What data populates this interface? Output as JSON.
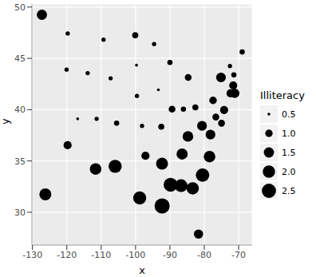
{
  "chart_data": {
    "type": "scatter",
    "xlabel": "x",
    "ylabel": "y",
    "color": "#000000",
    "grid": true,
    "x": [
      -86.7509,
      -127.25,
      -111.625,
      -92.2992,
      -119.773,
      -105.513,
      -72.3573,
      -74.9841,
      -81.685,
      -83.3736,
      -126.25,
      -113.93,
      -89.3776,
      -86.0808,
      -93.3714,
      -98.1156,
      -84.7674,
      -92.2724,
      -68.9801,
      -76.6459,
      -71.58,
      -84.687,
      -94.6043,
      -89.8065,
      -92.5137,
      -109.32,
      -99.5898,
      -116.851,
      -71.3924,
      -74.2336,
      -105.942,
      -75.1449,
      -78.4686,
      -100.099,
      -82.5963,
      -97.1239,
      -120.068,
      -77.45,
      -71.1244,
      -80.5056,
      -99.7238,
      -86.456,
      -98.7857,
      -111.33,
      -72.545,
      -78.2005,
      -119.746,
      -80.6665,
      -89.9941,
      -107.256
    ],
    "y": [
      32.5901,
      49.25,
      34.2192,
      34.7336,
      36.5341,
      38.6777,
      41.5928,
      38.6777,
      27.8744,
      32.3329,
      31.75,
      43.5648,
      40.0495,
      40.0495,
      41.9358,
      38.4204,
      37.3915,
      30.6181,
      45.6226,
      39.2778,
      42.3645,
      43.1403,
      46.3943,
      32.6758,
      38.3347,
      46.823,
      41.3356,
      39.1063,
      43.385,
      39.9637,
      34.4764,
      43.1403,
      35.4195,
      47.2517,
      40.221,
      35.5053,
      43.9078,
      40.9069,
      41.5928,
      33.619,
      44.3365,
      35.6767,
      31.3897,
      39.1063,
      44.2508,
      37.563,
      47.4231,
      38.4204,
      44.5937,
      43.0541
    ],
    "size": [
      2.1,
      1.5,
      1.8,
      1.9,
      1.1,
      0.7,
      1.1,
      0.9,
      1.3,
      2.0,
      1.9,
      0.6,
      0.9,
      0.7,
      0.5,
      0.6,
      1.6,
      2.8,
      0.7,
      0.9,
      1.1,
      0.9,
      0.6,
      2.4,
      0.8,
      0.6,
      0.6,
      0.5,
      0.7,
      1.1,
      2.2,
      1.4,
      1.8,
      0.8,
      0.8,
      1.1,
      0.6,
      1.0,
      1.3,
      2.3,
      0.5,
      1.7,
      2.2,
      0.6,
      0.6,
      1.4,
      0.6,
      1.4,
      0.7,
      0.6
    ],
    "size_lim": [
      0.5,
      2.8
    ],
    "size_legend": {
      "title": "Illiteracy",
      "ticks": [
        0.5,
        {
          "value": 1,
          "label": "1.0"
        },
        1.5,
        {
          "value": 2,
          "label": "2.0"
        },
        2.5
      ]
    },
    "xlim": [
      -130.16,
      -66.07
    ],
    "xticks": [
      -130,
      -120,
      -110,
      -100,
      -90,
      -80,
      -70
    ],
    "ylim": [
      26.8,
      50.3
    ],
    "yticks": [
      30,
      35,
      40,
      45,
      50
    ]
  }
}
